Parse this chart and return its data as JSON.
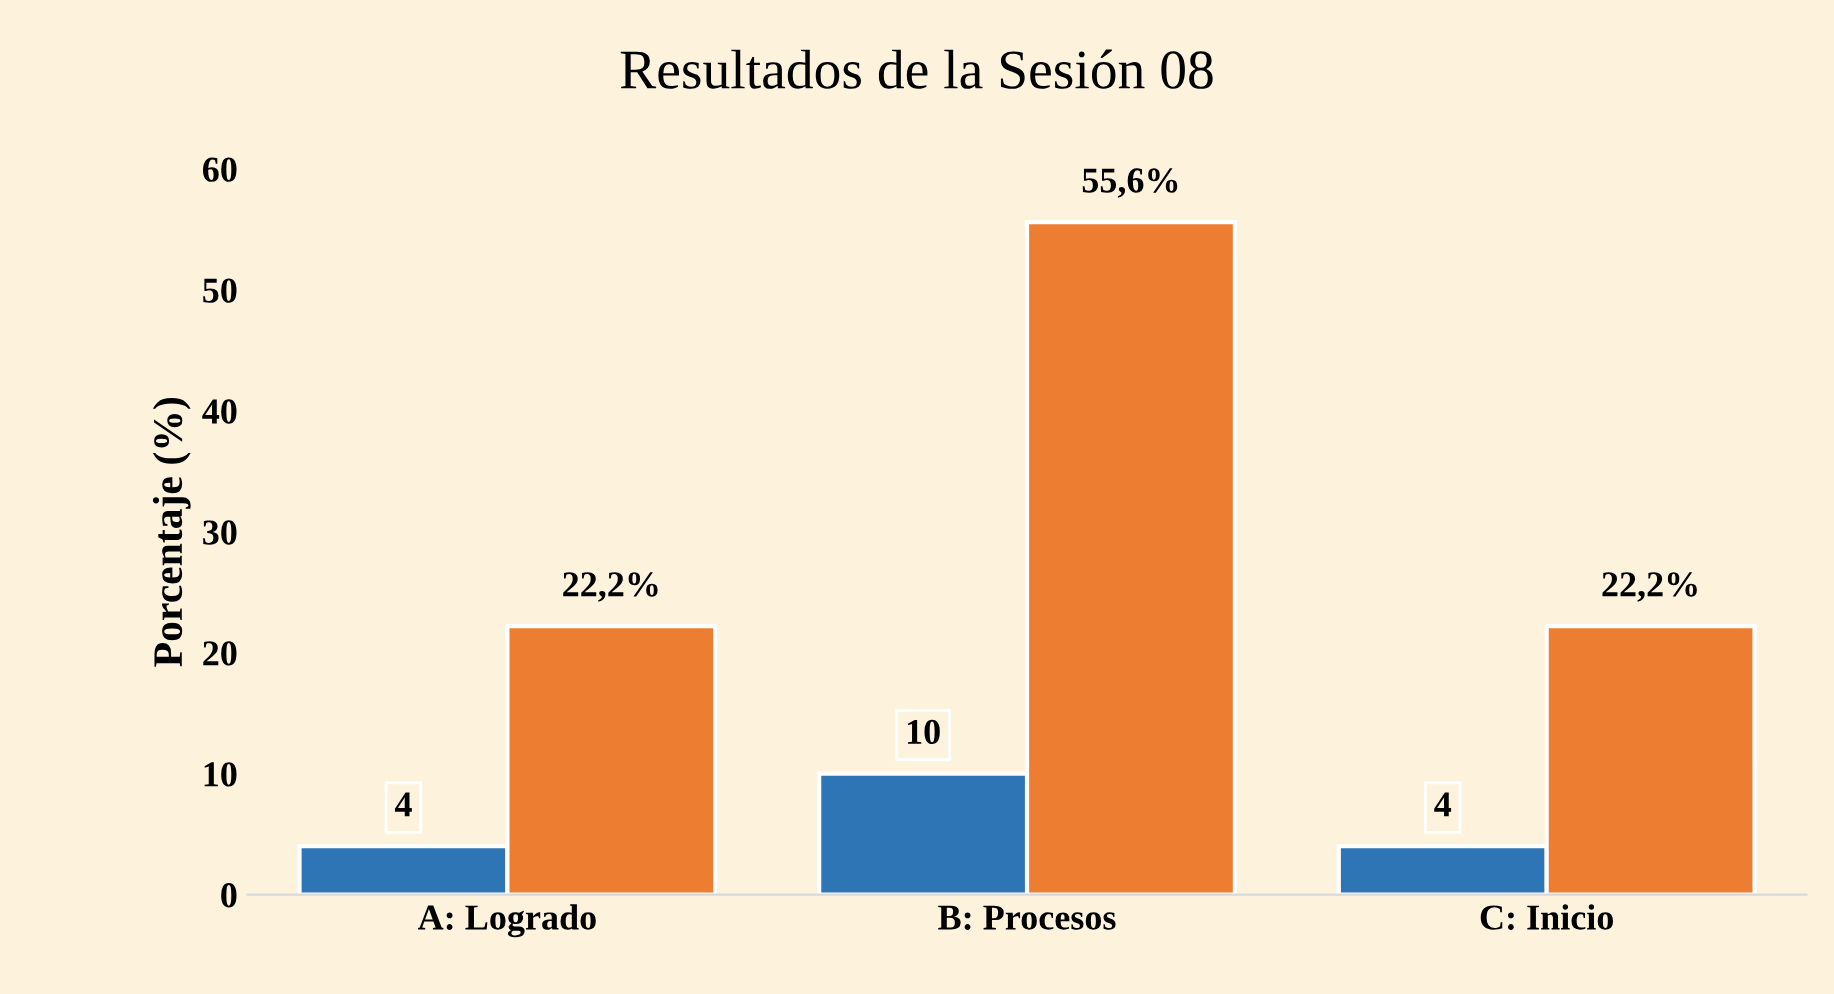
{
  "chart_data": {
    "type": "bar",
    "title": "Resultados de la Sesión 08",
    "ylabel": "Porcentaje (%)",
    "categories": [
      "A: Logrado",
      "B: Procesos",
      "C: Inicio"
    ],
    "series": [
      {
        "color": "#2e75b6",
        "values": [
          4,
          10,
          4
        ],
        "value_labels": [
          "4",
          "10",
          "4"
        ]
      },
      {
        "color": "#ed7d31",
        "values": [
          22.2,
          55.6,
          22.2
        ],
        "value_labels": [
          "22,2%",
          "55,6%",
          "22,2%"
        ]
      }
    ],
    "ylim": [
      0,
      60
    ],
    "yticks": [
      0,
      10,
      20,
      30,
      40,
      50,
      60
    ],
    "grid": false,
    "legend": false
  }
}
